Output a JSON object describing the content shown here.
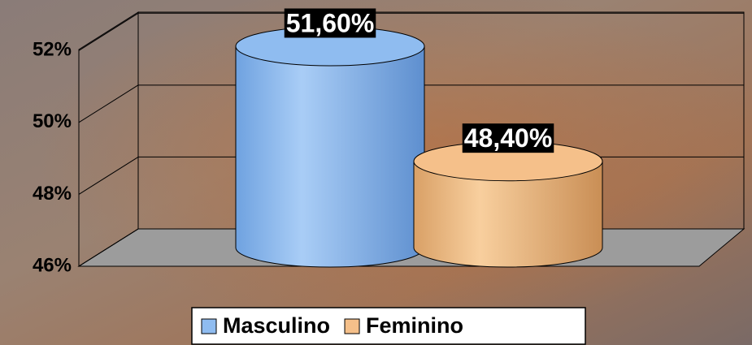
{
  "chart_data": {
    "type": "cylinder",
    "series": [
      {
        "name": "Masculino",
        "color": "#8fbcf0",
        "values": [
          51.6
        ],
        "value_labels": [
          "51,60%"
        ]
      },
      {
        "name": "Feminino",
        "color": "#f5c08a",
        "values": [
          48.4
        ],
        "value_labels": [
          "48,40%"
        ]
      }
    ],
    "ylim": [
      46,
      53
    ],
    "yticks": [
      {
        "value": 46,
        "label": "46%"
      },
      {
        "value": 48,
        "label": "48%"
      },
      {
        "value": 50,
        "label": "50%"
      },
      {
        "value": 52,
        "label": "52%"
      }
    ],
    "grid": true,
    "legend": "bottom"
  }
}
